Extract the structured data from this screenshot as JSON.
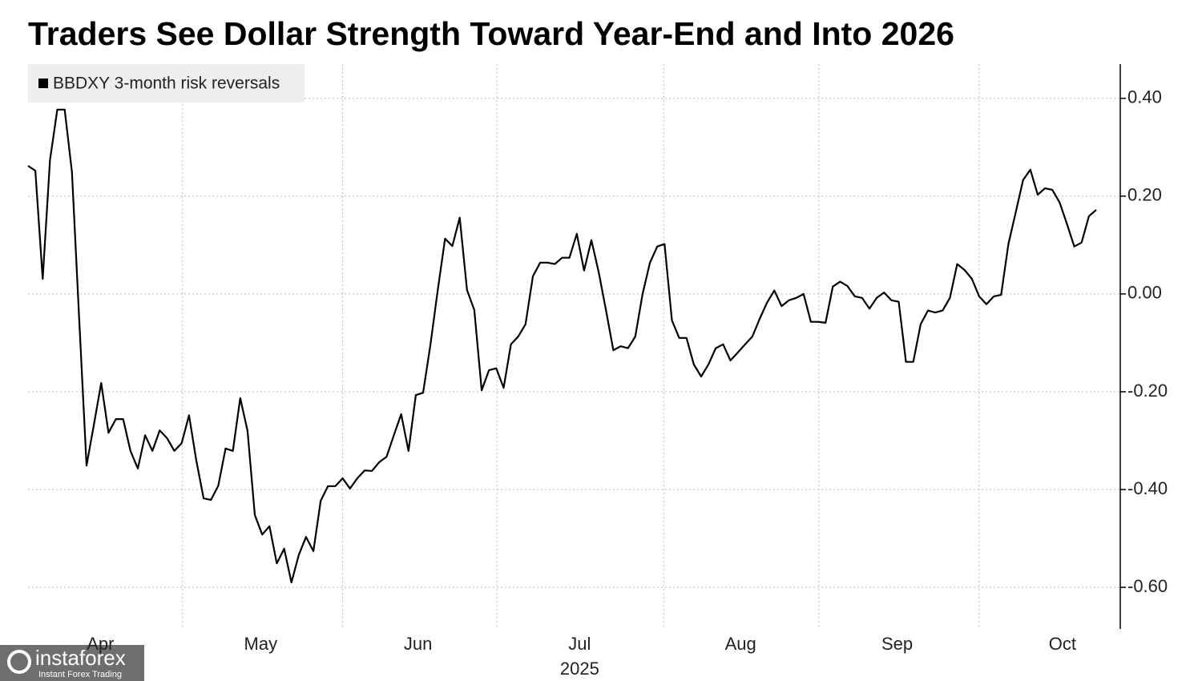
{
  "chart_data": {
    "type": "line",
    "title": "Traders See Dollar Strength Toward Year-End and Into 2026",
    "legend_corner": "top-left",
    "grid": true,
    "xlim": [
      0,
      149.3
    ],
    "ylim": [
      -0.685,
      0.47
    ],
    "yticks": [
      {
        "value": 0.4,
        "label": "0.40"
      },
      {
        "value": 0.2,
        "label": "0.20"
      },
      {
        "value": 0,
        "label": "0.00"
      },
      {
        "value": -0.2,
        "label": "-0.20"
      },
      {
        "value": -0.4,
        "label": "-0.40"
      },
      {
        "value": -0.6,
        "label": "-0.60"
      }
    ],
    "xticks": [
      {
        "value": 9.9,
        "label": "Apr"
      },
      {
        "value": 31.8,
        "label": "May"
      },
      {
        "value": 53.3,
        "label": "Jun"
      },
      {
        "value": 75.4,
        "label": "Jul"
      },
      {
        "value": 97.4,
        "label": "Aug"
      },
      {
        "value": 118.8,
        "label": "Sep"
      },
      {
        "value": 141.4,
        "label": "Oct"
      }
    ],
    "xgrid": [
      21.1,
      43.0,
      64.1,
      86.9,
      108.1,
      130.0
    ],
    "year_label": {
      "value": 75.4,
      "label": "2025"
    },
    "series": [
      {
        "name": "BBDXY 3-month risk reversals",
        "color": "#000000",
        "values": [
          0.262,
          0.252,
          0.031,
          0.274,
          0.377,
          0.377,
          0.249,
          -0.054,
          -0.351,
          -0.267,
          -0.182,
          -0.284,
          -0.256,
          -0.256,
          -0.321,
          -0.357,
          -0.289,
          -0.321,
          -0.279,
          -0.295,
          -0.321,
          -0.305,
          -0.248,
          -0.341,
          -0.418,
          -0.421,
          -0.392,
          -0.316,
          -0.321,
          -0.213,
          -0.28,
          -0.452,
          -0.492,
          -0.475,
          -0.551,
          -0.521,
          -0.59,
          -0.534,
          -0.497,
          -0.526,
          -0.423,
          -0.393,
          -0.393,
          -0.377,
          -0.398,
          -0.377,
          -0.361,
          -0.362,
          -0.344,
          -0.333,
          -0.289,
          -0.246,
          -0.321,
          -0.207,
          -0.202,
          -0.103,
          0.008,
          0.113,
          0.098,
          0.156,
          0.008,
          -0.033,
          -0.197,
          -0.156,
          -0.152,
          -0.192,
          -0.103,
          -0.087,
          -0.062,
          0.036,
          0.064,
          0.064,
          0.061,
          0.074,
          0.074,
          0.123,
          0.048,
          0.11,
          0.044,
          -0.034,
          -0.115,
          -0.107,
          -0.111,
          -0.087,
          0,
          0.064,
          0.097,
          0.102,
          -0.054,
          -0.09,
          -0.09,
          -0.144,
          -0.169,
          -0.144,
          -0.111,
          -0.103,
          -0.136,
          -0.12,
          -0.103,
          -0.087,
          -0.051,
          -0.018,
          0.007,
          -0.025,
          -0.013,
          -0.008,
          0,
          -0.057,
          -0.057,
          -0.059,
          0.015,
          0.025,
          0.016,
          -0.005,
          -0.008,
          -0.03,
          -0.008,
          0.003,
          -0.013,
          -0.016,
          -0.139,
          -0.139,
          -0.062,
          -0.034,
          -0.038,
          -0.034,
          -0.008,
          0.061,
          0.049,
          0.031,
          -0.005,
          -0.021,
          -0.005,
          -0.002,
          0.102,
          0.167,
          0.233,
          0.254,
          0.203,
          0.216,
          0.213,
          0.187,
          0.143,
          0.097,
          0.105,
          0.159,
          0.172
        ]
      }
    ]
  },
  "watermark": {
    "name": "instaforex",
    "tagline": "Instant Forex Trading"
  }
}
